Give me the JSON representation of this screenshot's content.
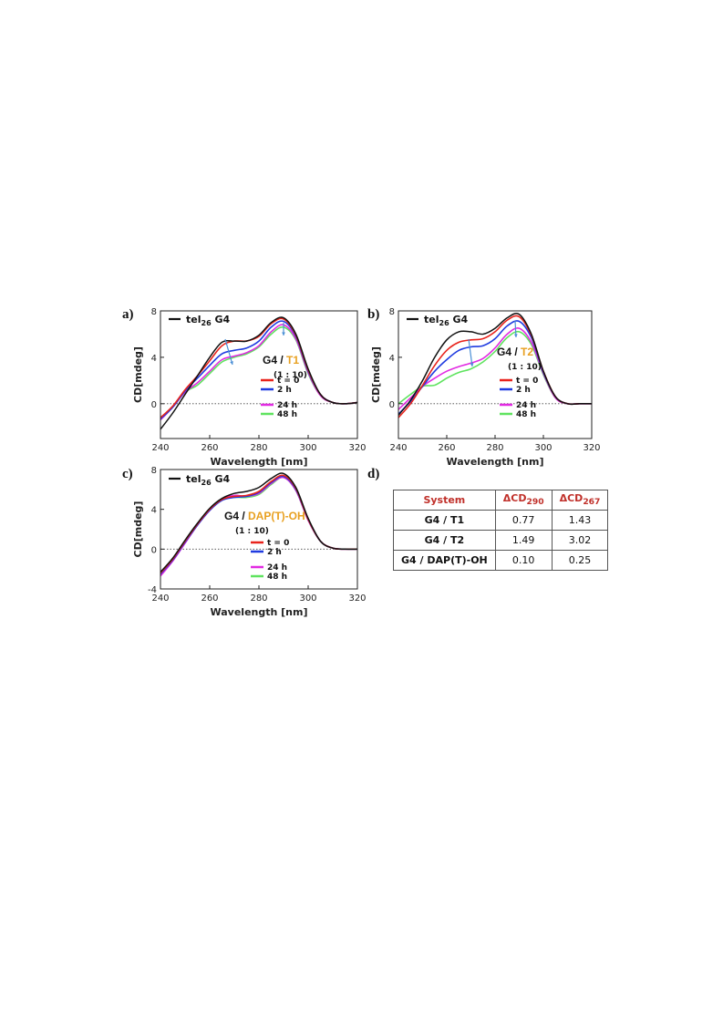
{
  "panels": {
    "a": {
      "letter": "a)",
      "legend_main": "tel",
      "legend_main_sub": "26",
      "legend_main_tail": " G4",
      "system_prefix": "G4 / ",
      "system_ligand": "T1",
      "ratio": "(1 : 10)",
      "time_labels": [
        "t = 0",
        "2 h",
        "24 h",
        "48 h"
      ]
    },
    "b": {
      "letter": "b)",
      "legend_main": "tel",
      "legend_main_sub": "26",
      "legend_main_tail": " G4",
      "system_prefix": "G4 / ",
      "system_ligand": "T2",
      "ratio": "(1 : 10)",
      "time_labels": [
        "t = 0",
        "2 h",
        "24 h",
        "48 h"
      ]
    },
    "c": {
      "letter": "c)",
      "legend_main": "tel",
      "legend_main_sub": "26",
      "legend_main_tail": " G4",
      "system_prefix": "G4 / ",
      "system_ligand": "DAP(T)-OH",
      "ratio": "(1 : 10)",
      "time_labels": [
        "t = 0",
        "2 h",
        "24 h",
        "48 h"
      ]
    },
    "d": {
      "letter": "d)"
    }
  },
  "colors": {
    "tel26": "#111111",
    "t0": "#e8231c",
    "h2": "#1f3be0",
    "h24": "#e22ae2",
    "h48": "#5fe35f",
    "arrow": "#4a8fd6",
    "ligand_label": "#e8a020",
    "table_header": "#c0302a"
  },
  "table": {
    "headers": [
      "System",
      "ΔCD",
      "ΔCD"
    ],
    "header_subs": [
      "",
      "290",
      "267"
    ],
    "rows": [
      [
        "G4 / T1",
        "0.77",
        "1.43"
      ],
      [
        "G4 / T2",
        "1.49",
        "3.02"
      ],
      [
        "G4 / DAP(T)-OH",
        "0.10",
        "0.25"
      ]
    ]
  },
  "chart_data": [
    {
      "type": "line",
      "panel": "a",
      "xlabel": "Wavelength [nm]",
      "ylabel": "CD[mdeg]",
      "xlim": [
        240,
        320
      ],
      "ylim": [
        -3,
        8
      ],
      "xticks": [
        240,
        260,
        280,
        300,
        320
      ],
      "yticks": [
        0,
        4,
        8
      ],
      "zero_line": "dotted",
      "legend_position": "top-left + right inset",
      "series": [
        {
          "name": "tel26 G4",
          "color_key": "tel26",
          "x": [
            240,
            245,
            250,
            255,
            260,
            265,
            270,
            275,
            280,
            285,
            290,
            295,
            300,
            305,
            310,
            315,
            320
          ],
          "y": [
            -2.2,
            -0.8,
            0.8,
            2.4,
            4.0,
            5.3,
            5.4,
            5.4,
            5.9,
            7.0,
            7.4,
            6.0,
            3.0,
            0.8,
            0.1,
            0.0,
            0.1
          ]
        },
        {
          "name": "t = 0",
          "color_key": "t0",
          "x": [
            240,
            245,
            250,
            255,
            260,
            265,
            270,
            275,
            280,
            285,
            290,
            295,
            300,
            305,
            310,
            315,
            320
          ],
          "y": [
            -1.2,
            -0.2,
            1.2,
            2.4,
            3.7,
            5.0,
            5.4,
            5.4,
            5.8,
            6.9,
            7.3,
            5.9,
            2.9,
            0.8,
            0.1,
            0.0,
            0.1
          ]
        },
        {
          "name": "2 h",
          "color_key": "h2",
          "x": [
            240,
            245,
            250,
            255,
            260,
            265,
            270,
            275,
            280,
            285,
            290,
            295,
            300,
            305,
            310,
            315,
            320
          ],
          "y": [
            -1.3,
            -0.3,
            1.1,
            2.2,
            3.3,
            4.3,
            4.6,
            4.8,
            5.4,
            6.6,
            7.1,
            5.8,
            2.8,
            0.8,
            0.1,
            0.0,
            0.1
          ]
        },
        {
          "name": "24 h",
          "color_key": "h24",
          "x": [
            240,
            245,
            250,
            255,
            260,
            265,
            270,
            275,
            280,
            285,
            290,
            295,
            300,
            305,
            310,
            315,
            320
          ],
          "y": [
            -1.4,
            -0.3,
            1.0,
            1.8,
            2.8,
            3.8,
            4.1,
            4.4,
            5.0,
            6.2,
            6.8,
            5.6,
            2.7,
            0.7,
            0.1,
            0.0,
            0.1
          ]
        },
        {
          "name": "48 h",
          "color_key": "h48",
          "x": [
            240,
            245,
            250,
            255,
            260,
            265,
            270,
            275,
            280,
            285,
            290,
            295,
            300,
            305,
            310,
            315,
            320
          ],
          "y": [
            -1.4,
            -0.3,
            1.0,
            1.6,
            2.6,
            3.6,
            4.0,
            4.3,
            4.9,
            6.0,
            6.6,
            5.5,
            2.6,
            0.7,
            0.1,
            0.0,
            0.1
          ]
        }
      ]
    },
    {
      "type": "line",
      "panel": "b",
      "xlabel": "Wavelength [nm]",
      "ylabel": "CD[mdeg]",
      "xlim": [
        240,
        320
      ],
      "ylim": [
        -3,
        8
      ],
      "xticks": [
        240,
        260,
        280,
        300,
        320
      ],
      "yticks": [
        0,
        4,
        8
      ],
      "zero_line": "dotted",
      "legend_position": "top-left + right inset",
      "series": [
        {
          "name": "tel26 G4",
          "color_key": "tel26",
          "x": [
            240,
            245,
            250,
            255,
            260,
            265,
            270,
            275,
            280,
            285,
            290,
            295,
            300,
            305,
            310,
            315,
            320
          ],
          "y": [
            -1.0,
            0.3,
            2.0,
            4.0,
            5.5,
            6.2,
            6.2,
            6.0,
            6.5,
            7.4,
            7.7,
            6.0,
            2.8,
            0.6,
            0.0,
            0.0,
            0.0
          ]
        },
        {
          "name": "t = 0",
          "color_key": "t0",
          "x": [
            240,
            245,
            250,
            255,
            260,
            265,
            270,
            275,
            280,
            285,
            290,
            295,
            300,
            305,
            310,
            315,
            320
          ],
          "y": [
            -1.2,
            0.0,
            1.6,
            3.3,
            4.6,
            5.3,
            5.5,
            5.6,
            6.2,
            7.2,
            7.5,
            5.9,
            2.8,
            0.6,
            0.0,
            0.0,
            0.0
          ]
        },
        {
          "name": "2 h",
          "color_key": "h2",
          "x": [
            240,
            245,
            250,
            255,
            260,
            265,
            270,
            275,
            280,
            285,
            290,
            295,
            300,
            305,
            310,
            315,
            320
          ],
          "y": [
            -0.9,
            0.2,
            1.5,
            2.8,
            3.8,
            4.6,
            4.9,
            5.0,
            5.6,
            6.7,
            7.1,
            5.7,
            2.7,
            0.6,
            0.0,
            0.0,
            0.0
          ]
        },
        {
          "name": "24 h",
          "color_key": "h24",
          "x": [
            240,
            245,
            250,
            255,
            260,
            265,
            270,
            275,
            280,
            285,
            290,
            295,
            300,
            305,
            310,
            315,
            320
          ],
          "y": [
            -0.5,
            0.5,
            1.5,
            2.2,
            2.8,
            3.2,
            3.5,
            3.9,
            4.8,
            6.0,
            6.5,
            5.3,
            2.6,
            0.5,
            0.0,
            0.0,
            0.0
          ]
        },
        {
          "name": "48 h",
          "color_key": "h48",
          "x": [
            240,
            245,
            250,
            255,
            260,
            265,
            270,
            275,
            280,
            285,
            290,
            295,
            300,
            305,
            310,
            315,
            320
          ],
          "y": [
            0.0,
            0.8,
            1.5,
            1.6,
            2.2,
            2.7,
            3.0,
            3.6,
            4.5,
            5.7,
            6.2,
            5.1,
            2.5,
            0.5,
            0.0,
            0.0,
            0.0
          ]
        }
      ]
    },
    {
      "type": "line",
      "panel": "c",
      "xlabel": "Wavelength [nm]",
      "ylabel": "CD[mdeg]",
      "xlim": [
        240,
        320
      ],
      "ylim": [
        -4,
        8
      ],
      "xticks": [
        240,
        260,
        280,
        300,
        320
      ],
      "yticks": [
        -4,
        0,
        4,
        8
      ],
      "zero_line": "dotted",
      "legend_position": "top-left + right inset",
      "series": [
        {
          "name": "tel26 G4",
          "color_key": "tel26",
          "x": [
            240,
            245,
            250,
            255,
            260,
            265,
            270,
            275,
            280,
            285,
            290,
            295,
            300,
            305,
            310,
            315,
            320
          ],
          "y": [
            -2.3,
            -0.9,
            0.9,
            2.6,
            4.1,
            5.1,
            5.6,
            5.8,
            6.2,
            7.1,
            7.6,
            6.2,
            3.1,
            0.8,
            0.1,
            0.0,
            0.0
          ]
        },
        {
          "name": "t = 0",
          "color_key": "t0",
          "x": [
            240,
            245,
            250,
            255,
            260,
            265,
            270,
            275,
            280,
            285,
            290,
            295,
            300,
            305,
            310,
            315,
            320
          ],
          "y": [
            -2.4,
            -1.0,
            0.8,
            2.5,
            4.0,
            5.0,
            5.3,
            5.4,
            5.8,
            6.8,
            7.4,
            6.1,
            3.0,
            0.8,
            0.1,
            0.0,
            0.0
          ]
        },
        {
          "name": "2 h",
          "color_key": "h2",
          "x": [
            240,
            245,
            250,
            255,
            260,
            265,
            270,
            275,
            280,
            285,
            290,
            295,
            300,
            305,
            310,
            315,
            320
          ],
          "y": [
            -2.5,
            -1.1,
            0.7,
            2.4,
            3.9,
            4.9,
            5.2,
            5.3,
            5.7,
            6.7,
            7.3,
            6.0,
            3.0,
            0.8,
            0.1,
            0.0,
            0.0
          ]
        },
        {
          "name": "24 h",
          "color_key": "h24",
          "x": [
            240,
            245,
            250,
            255,
            260,
            265,
            270,
            275,
            280,
            285,
            290,
            295,
            300,
            305,
            310,
            315,
            320
          ],
          "y": [
            -2.7,
            -1.2,
            0.6,
            2.4,
            3.9,
            5.0,
            5.4,
            5.3,
            5.6,
            6.6,
            7.2,
            5.9,
            2.9,
            0.8,
            0.1,
            0.0,
            0.0
          ]
        },
        {
          "name": "48 h",
          "color_key": "h48",
          "x": [
            240,
            245,
            250,
            255,
            260,
            265,
            270,
            275,
            280,
            285,
            290,
            295,
            300,
            305,
            310,
            315,
            320
          ],
          "y": [
            -2.6,
            -1.1,
            0.7,
            2.5,
            4.0,
            5.0,
            5.2,
            5.2,
            5.5,
            6.5,
            7.2,
            5.9,
            2.9,
            0.8,
            0.1,
            0.0,
            0.0
          ]
        }
      ]
    }
  ]
}
